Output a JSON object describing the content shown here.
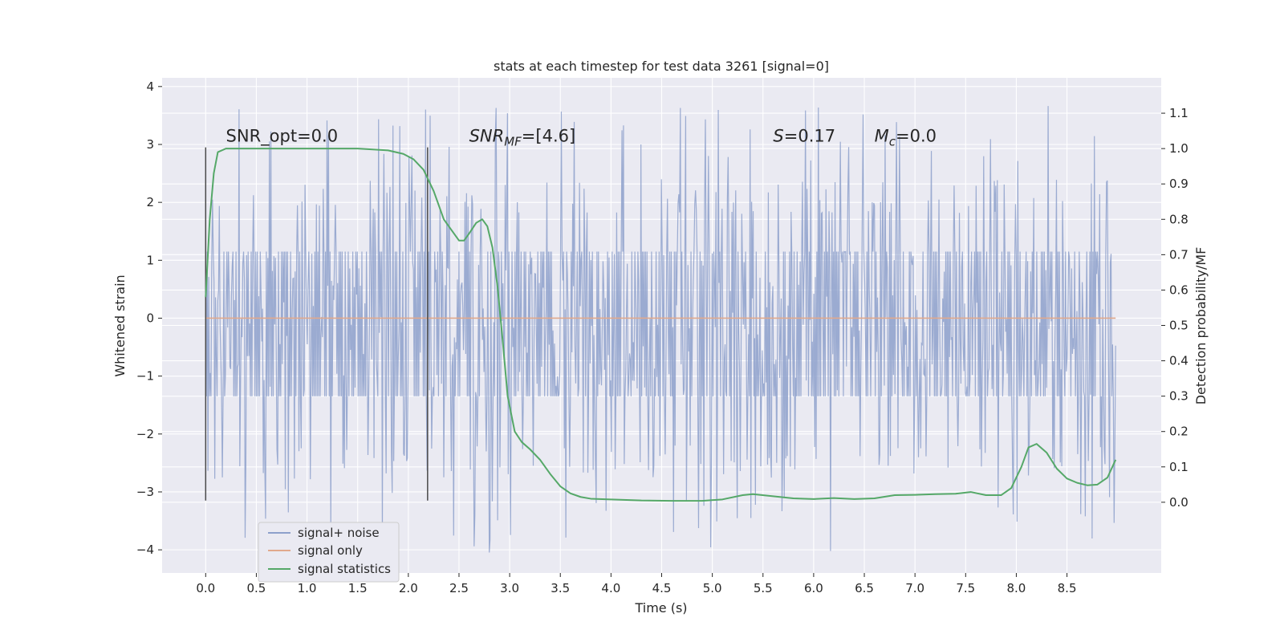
{
  "chart_data": {
    "type": "line",
    "title": "stats at each timestep for test data 3261 [signal=0]",
    "xlabel": "Time (s)",
    "ylabel_left": "Whitened strain",
    "ylabel_right": "Detection probability/MF",
    "xlim": [
      -0.43,
      9.43
    ],
    "ylim_left": [
      -4.4,
      4.15
    ],
    "ylim_right": [
      -0.2,
      1.2
    ],
    "x_ticks": [
      0.0,
      0.5,
      1.0,
      1.5,
      2.0,
      2.5,
      3.0,
      3.5,
      4.0,
      4.5,
      5.0,
      5.5,
      6.0,
      6.5,
      7.0,
      7.5,
      8.0,
      8.5
    ],
    "x_tick_labels": [
      "0.0",
      "0.5",
      "1.0",
      "1.5",
      "2.0",
      "2.5",
      "3.0",
      "3.5",
      "4.0",
      "4.5",
      "5.0",
      "5.5",
      "6.0",
      "6.5",
      "7.0",
      "7.5",
      "8.0",
      "8.5"
    ],
    "y_left_ticks": [
      4,
      3,
      2,
      1,
      0,
      -1,
      -2,
      -3,
      -4
    ],
    "y_left_tick_labels": [
      "4",
      "3",
      "2",
      "1",
      "0",
      "−1",
      "−2",
      "−3",
      "−4"
    ],
    "y_right_ticks": [
      1.1,
      1.0,
      0.9,
      0.8,
      0.7,
      0.6,
      0.5,
      0.4,
      0.3,
      0.2,
      0.1,
      0.0
    ],
    "y_right_tick_labels": [
      "1.1",
      "1.0",
      "0.9",
      "0.8",
      "0.7",
      "0.6",
      "0.5",
      "0.4",
      "0.3",
      "0.2",
      "0.1",
      "0.0"
    ],
    "grid": true,
    "vlines": [
      {
        "x": 0.0,
        "ymin": -3.15,
        "ymax": 2.95
      },
      {
        "x": 2.19,
        "ymin": -3.15,
        "ymax": 2.95
      }
    ],
    "annotations": [
      {
        "x": 0.2,
        "y": 3.05,
        "base": "SNR_opt=0.0"
      },
      {
        "x": 2.6,
        "y": 3.05,
        "base": "SNR",
        "sub": "MF",
        "rest": "=[4.6]"
      },
      {
        "x": 5.6,
        "y": 3.05,
        "base": "S",
        "rest": "=0.17"
      },
      {
        "x": 6.6,
        "y": 3.05,
        "base": "M",
        "sub": "c",
        "rest": "=0.0"
      }
    ],
    "legend": {
      "placement": "lower-left",
      "entries": [
        {
          "label": "signal+ noise",
          "color": "#8da0cb"
        },
        {
          "label": "signal only",
          "color": "#e1a98c"
        },
        {
          "label": "signal statistics",
          "color": "#55a868"
        }
      ]
    },
    "series": [
      {
        "name": "signal+ noise",
        "axis": "left",
        "kind": "noise-trace",
        "x_range": [
          0.0,
          8.98
        ],
        "samples": 1200,
        "core_band": [
          -1.35,
          1.15
        ],
        "typical_max": 2.4,
        "typical_min": -2.8,
        "peak_max": 3.7,
        "peak_min": -4.05,
        "color": "#8da0cb"
      },
      {
        "name": "signal only",
        "axis": "left",
        "x": [
          0.0,
          8.98
        ],
        "y": [
          0.0,
          0.0
        ],
        "color": "#e1a98c"
      },
      {
        "name": "signal statistics",
        "axis": "right",
        "color": "#55a868",
        "x": [
          0.0,
          0.04,
          0.08,
          0.12,
          0.2,
          0.3,
          0.5,
          1.0,
          1.5,
          1.8,
          1.95,
          2.05,
          2.15,
          2.25,
          2.35,
          2.45,
          2.5,
          2.55,
          2.6,
          2.67,
          2.73,
          2.78,
          2.83,
          2.88,
          2.93,
          2.98,
          3.05,
          3.12,
          3.2,
          3.3,
          3.4,
          3.5,
          3.6,
          3.7,
          3.8,
          4.0,
          4.3,
          4.6,
          4.9,
          5.1,
          5.3,
          5.4,
          5.6,
          5.8,
          6.0,
          6.2,
          6.4,
          6.6,
          6.8,
          7.0,
          7.2,
          7.4,
          7.55,
          7.7,
          7.85,
          7.95,
          8.05,
          8.12,
          8.2,
          8.3,
          8.4,
          8.5,
          8.6,
          8.7,
          8.8,
          8.9,
          8.98
        ],
        "y": [
          0.58,
          0.8,
          0.93,
          0.99,
          1.0,
          1.0,
          1.0,
          1.0,
          1.0,
          0.995,
          0.985,
          0.97,
          0.94,
          0.88,
          0.8,
          0.76,
          0.74,
          0.74,
          0.76,
          0.79,
          0.8,
          0.78,
          0.72,
          0.61,
          0.46,
          0.3,
          0.2,
          0.17,
          0.15,
          0.12,
          0.08,
          0.045,
          0.025,
          0.015,
          0.01,
          0.008,
          0.005,
          0.004,
          0.004,
          0.008,
          0.02,
          0.023,
          0.017,
          0.011,
          0.009,
          0.012,
          0.009,
          0.011,
          0.02,
          0.021,
          0.023,
          0.024,
          0.029,
          0.02,
          0.02,
          0.04,
          0.1,
          0.155,
          0.165,
          0.14,
          0.095,
          0.067,
          0.055,
          0.048,
          0.05,
          0.07,
          0.12
        ]
      }
    ]
  }
}
